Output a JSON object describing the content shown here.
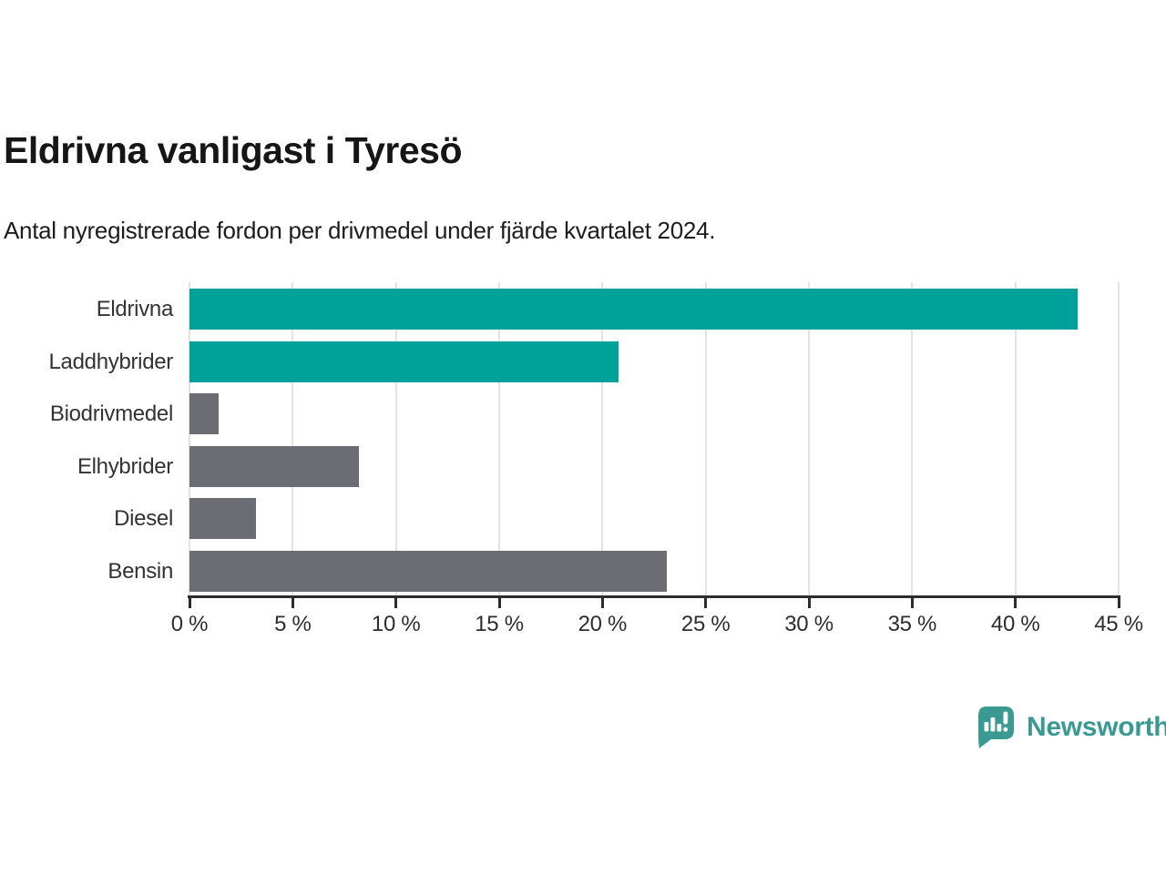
{
  "header": {
    "title": "Eldrivna vanligast i Tyresö",
    "subtitle": "Antal nyregistrerade fordon per drivmedel under fjärde kvartalet 2024."
  },
  "chart_data": {
    "type": "bar",
    "orientation": "horizontal",
    "title": "Eldrivna vanligast i Tyresö",
    "subtitle": "Antal nyregistrerade fordon per drivmedel under fjärde kvartalet 2024.",
    "categories": [
      "Eldrivna",
      "Laddhybrider",
      "Biodrivmedel",
      "Elhybrider",
      "Diesel",
      "Bensin"
    ],
    "values": [
      43.0,
      20.8,
      1.4,
      8.2,
      3.2,
      23.1
    ],
    "unit": "%",
    "xlabel": "",
    "ylabel": "",
    "xlim": [
      0,
      45
    ],
    "x_ticks": [
      0,
      5,
      10,
      15,
      20,
      25,
      30,
      35,
      40,
      45
    ],
    "x_tick_labels": [
      "0 %",
      "5 %",
      "10 %",
      "15 %",
      "20 %",
      "25 %",
      "30 %",
      "35 %",
      "40 %",
      "45 %"
    ],
    "bar_colors": [
      "#00a198",
      "#00a198",
      "#6c6c74",
      "#6c6c74",
      "#6c6c74",
      "#6c6c74"
    ],
    "grid": true,
    "legend": "none"
  },
  "branding": {
    "logo_text": "Newsworthy",
    "logo_color": "#3a9a91"
  },
  "colors": {
    "accent_teal": "#00a198",
    "bar_gray": "#6c6c74",
    "gridline": "#e3e3e3",
    "axis": "#2d2d2d",
    "title_text": "#161616",
    "axis_text": "#2e2e2e"
  }
}
